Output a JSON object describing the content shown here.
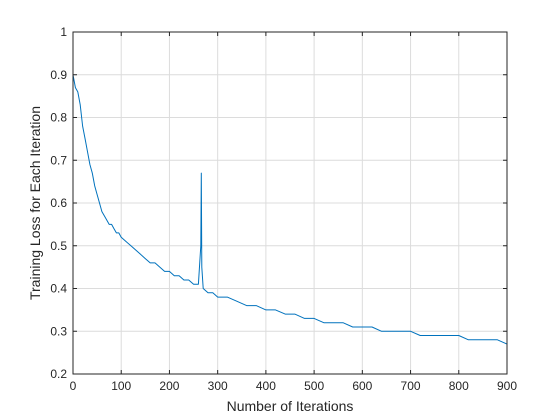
{
  "chart_data": {
    "type": "line",
    "title": "",
    "xlabel": "Number of Iterations",
    "ylabel": "Training Loss for Each Iteration",
    "xlim": [
      0,
      900
    ],
    "ylim": [
      0.2,
      1.0
    ],
    "x_ticks": [
      0,
      100,
      200,
      300,
      400,
      500,
      600,
      700,
      800,
      900
    ],
    "x_tick_labels": [
      "0",
      "100",
      "200",
      "300",
      "400",
      "500",
      "600",
      "700",
      "800",
      "900"
    ],
    "y_ticks": [
      0.2,
      0.3,
      0.4,
      0.5,
      0.6,
      0.7,
      0.8,
      0.9,
      1.0
    ],
    "y_tick_labels": [
      "0.2",
      "0.3",
      "0.4",
      "0.5",
      "0.6",
      "0.7",
      "0.8",
      "0.9",
      "1"
    ],
    "grid": true,
    "legend": "none",
    "series": [
      {
        "color": "#0072bd",
        "x": [
          0,
          5,
          10,
          15,
          20,
          25,
          30,
          35,
          40,
          45,
          50,
          55,
          60,
          65,
          70,
          75,
          80,
          85,
          90,
          95,
          100,
          110,
          120,
          130,
          140,
          150,
          160,
          170,
          180,
          190,
          200,
          210,
          220,
          230,
          240,
          250,
          260,
          265,
          266,
          267,
          270,
          280,
          290,
          300,
          320,
          340,
          360,
          380,
          400,
          420,
          440,
          460,
          480,
          500,
          520,
          540,
          560,
          580,
          600,
          620,
          640,
          660,
          680,
          700,
          720,
          740,
          760,
          780,
          800,
          820,
          840,
          860,
          880,
          900
        ],
        "y": [
          0.9,
          0.87,
          0.86,
          0.83,
          0.78,
          0.75,
          0.72,
          0.69,
          0.67,
          0.64,
          0.62,
          0.6,
          0.58,
          0.57,
          0.56,
          0.55,
          0.55,
          0.54,
          0.53,
          0.53,
          0.52,
          0.51,
          0.5,
          0.49,
          0.48,
          0.47,
          0.46,
          0.46,
          0.45,
          0.44,
          0.44,
          0.43,
          0.43,
          0.42,
          0.42,
          0.41,
          0.41,
          0.5,
          0.67,
          0.45,
          0.4,
          0.39,
          0.39,
          0.38,
          0.38,
          0.37,
          0.36,
          0.36,
          0.35,
          0.35,
          0.34,
          0.34,
          0.33,
          0.33,
          0.32,
          0.32,
          0.32,
          0.31,
          0.31,
          0.31,
          0.3,
          0.3,
          0.3,
          0.3,
          0.29,
          0.29,
          0.29,
          0.29,
          0.29,
          0.28,
          0.28,
          0.28,
          0.28,
          0.27
        ]
      }
    ]
  }
}
